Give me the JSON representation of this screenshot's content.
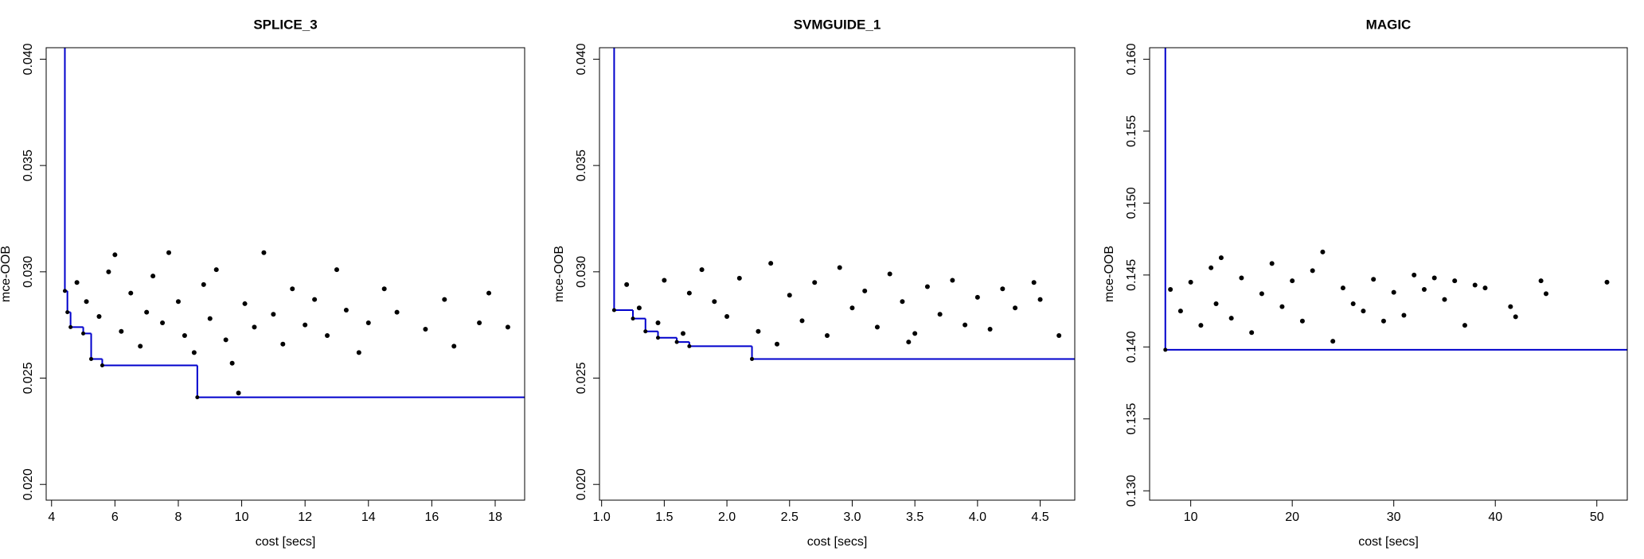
{
  "chart_data": [
    {
      "type": "scatter",
      "title": "SPLICE_3",
      "x_label": "cost [secs]",
      "y_label": "mce-OOB",
      "xlim": [
        3.83,
        18.93
      ],
      "ylim": [
        0.01926,
        0.04054
      ],
      "xticks": [
        4,
        6,
        8,
        10,
        12,
        14,
        16,
        18
      ],
      "yticks": [
        {
          "value": 0.02,
          "label": "0.020"
        },
        {
          "value": 0.025,
          "label": "0.025"
        },
        {
          "value": 0.03,
          "label": "0.030"
        },
        {
          "value": 0.035,
          "label": "0.035"
        },
        {
          "value": 0.04,
          "label": "0.040"
        }
      ],
      "series": [
        {
          "color": "#000000",
          "style": "points",
          "x": [
            4.8,
            5.1,
            5.5,
            5.8,
            6.0,
            6.2,
            6.5,
            6.8,
            7.0,
            7.2,
            7.5,
            7.7,
            8.0,
            8.2,
            8.5,
            8.8,
            9.0,
            9.2,
            9.5,
            9.7,
            9.9,
            10.1,
            10.4,
            10.7,
            11.0,
            11.3,
            11.6,
            12.0,
            12.3,
            12.7,
            13.0,
            13.3,
            13.7,
            14.0,
            14.5,
            14.9,
            15.8,
            16.4,
            16.7,
            17.5,
            17.8,
            18.4
          ],
          "values": [
            0.0295,
            0.0286,
            0.0279,
            0.03,
            0.0308,
            0.0272,
            0.029,
            0.0265,
            0.0281,
            0.0298,
            0.0276,
            0.0309,
            0.0286,
            0.027,
            0.0262,
            0.0294,
            0.0278,
            0.0301,
            0.0268,
            0.0257,
            0.0243,
            0.0285,
            0.0274,
            0.0309,
            0.028,
            0.0266,
            0.0292,
            0.0275,
            0.0287,
            0.027,
            0.0301,
            0.0282,
            0.0262,
            0.0276,
            0.0292,
            0.0281,
            0.0273,
            0.0287,
            0.0265,
            0.0276,
            0.029,
            0.0274
          ]
        },
        {
          "color": "#0000cc",
          "style": "step",
          "x": [
            4.42,
            4.5,
            4.6,
            5.0,
            5.25,
            5.6,
            8.6
          ],
          "values": [
            0.0291,
            0.0281,
            0.0274,
            0.0271,
            0.0259,
            0.0256,
            0.0241
          ]
        }
      ]
    },
    {
      "type": "scatter",
      "title": "SVMGUIDE_1",
      "x_label": "cost [secs]",
      "y_label": "mce-OOB",
      "xlim": [
        0.983,
        4.776
      ],
      "ylim": [
        0.01926,
        0.04054
      ],
      "xticks": [
        {
          "value": 1.0,
          "label": "1.0"
        },
        1.5,
        {
          "value": 2.0,
          "label": "2.0"
        },
        2.5,
        {
          "value": 3.0,
          "label": "3.0"
        },
        3.5,
        {
          "value": 4.0,
          "label": "4.0"
        },
        4.5
      ],
      "yticks": [
        {
          "value": 0.02,
          "label": "0.020"
        },
        {
          "value": 0.025,
          "label": "0.025"
        },
        {
          "value": 0.03,
          "label": "0.030"
        },
        {
          "value": 0.035,
          "label": "0.035"
        },
        {
          "value": 0.04,
          "label": "0.040"
        }
      ],
      "series": [
        {
          "color": "#000000",
          "style": "points",
          "x": [
            1.2,
            1.3,
            1.45,
            1.5,
            1.65,
            1.8,
            1.9,
            2.0,
            2.1,
            2.25,
            2.35,
            2.5,
            2.6,
            2.7,
            2.8,
            2.9,
            3.0,
            3.1,
            3.2,
            3.3,
            3.4,
            3.5,
            3.6,
            3.7,
            3.8,
            3.9,
            4.0,
            4.1,
            4.2,
            4.3,
            4.45,
            4.5,
            4.65,
            1.7,
            2.4,
            3.45
          ],
          "values": [
            0.0294,
            0.0283,
            0.0276,
            0.0296,
            0.0271,
            0.0301,
            0.0286,
            0.0279,
            0.0297,
            0.0272,
            0.0304,
            0.0289,
            0.0277,
            0.0295,
            0.027,
            0.0302,
            0.0283,
            0.0291,
            0.0274,
            0.0299,
            0.0286,
            0.0271,
            0.0293,
            0.028,
            0.0296,
            0.0275,
            0.0288,
            0.0273,
            0.0292,
            0.0283,
            0.0295,
            0.0287,
            0.027,
            0.029,
            0.0266,
            0.0267
          ]
        },
        {
          "color": "#0000cc",
          "style": "step",
          "x": [
            1.1,
            1.25,
            1.35,
            1.45,
            1.6,
            1.7,
            2.2
          ],
          "values": [
            0.0282,
            0.0278,
            0.0272,
            0.0269,
            0.0267,
            0.0265,
            0.0259
          ]
        }
      ]
    },
    {
      "type": "scatter",
      "title": "MAGIC",
      "x_label": "cost [secs]",
      "y_label": "mce-OOB",
      "xlim": [
        5.95,
        53.0
      ],
      "ylim": [
        0.12935,
        0.1608
      ],
      "xticks": [
        10,
        20,
        30,
        40,
        50
      ],
      "yticks": [
        {
          "value": 0.13,
          "label": "0.130"
        },
        0.135,
        {
          "value": 0.14,
          "label": "0.140"
        },
        0.145,
        {
          "value": 0.15,
          "label": "0.150"
        },
        0.155,
        {
          "value": 0.16,
          "label": "0.160"
        }
      ],
      "series": [
        {
          "color": "#000000",
          "style": "points",
          "x": [
            8,
            9,
            10,
            11,
            12,
            12.5,
            13,
            14,
            15,
            16,
            17,
            18,
            19,
            20,
            21,
            22,
            23,
            24,
            25,
            26,
            27,
            28,
            29,
            30,
            31,
            32,
            33,
            34,
            35,
            36,
            37,
            38,
            39,
            41.5,
            42,
            44.5,
            45,
            51
          ],
          "values": [
            0.144,
            0.1425,
            0.1445,
            0.1415,
            0.1455,
            0.143,
            0.1462,
            0.142,
            0.1448,
            0.141,
            0.1437,
            0.1458,
            0.1428,
            0.1446,
            0.1418,
            0.1453,
            0.1466,
            0.1404,
            0.1441,
            0.143,
            0.1425,
            0.1447,
            0.1418,
            0.1438,
            0.1422,
            0.145,
            0.144,
            0.1448,
            0.1433,
            0.1446,
            0.1415,
            0.1443,
            0.1441,
            0.1428,
            0.1421,
            0.1446,
            0.1437,
            0.1445
          ]
        },
        {
          "color": "#0000cc",
          "style": "step",
          "x": [
            7.5
          ],
          "values": [
            0.1398
          ]
        }
      ]
    }
  ]
}
